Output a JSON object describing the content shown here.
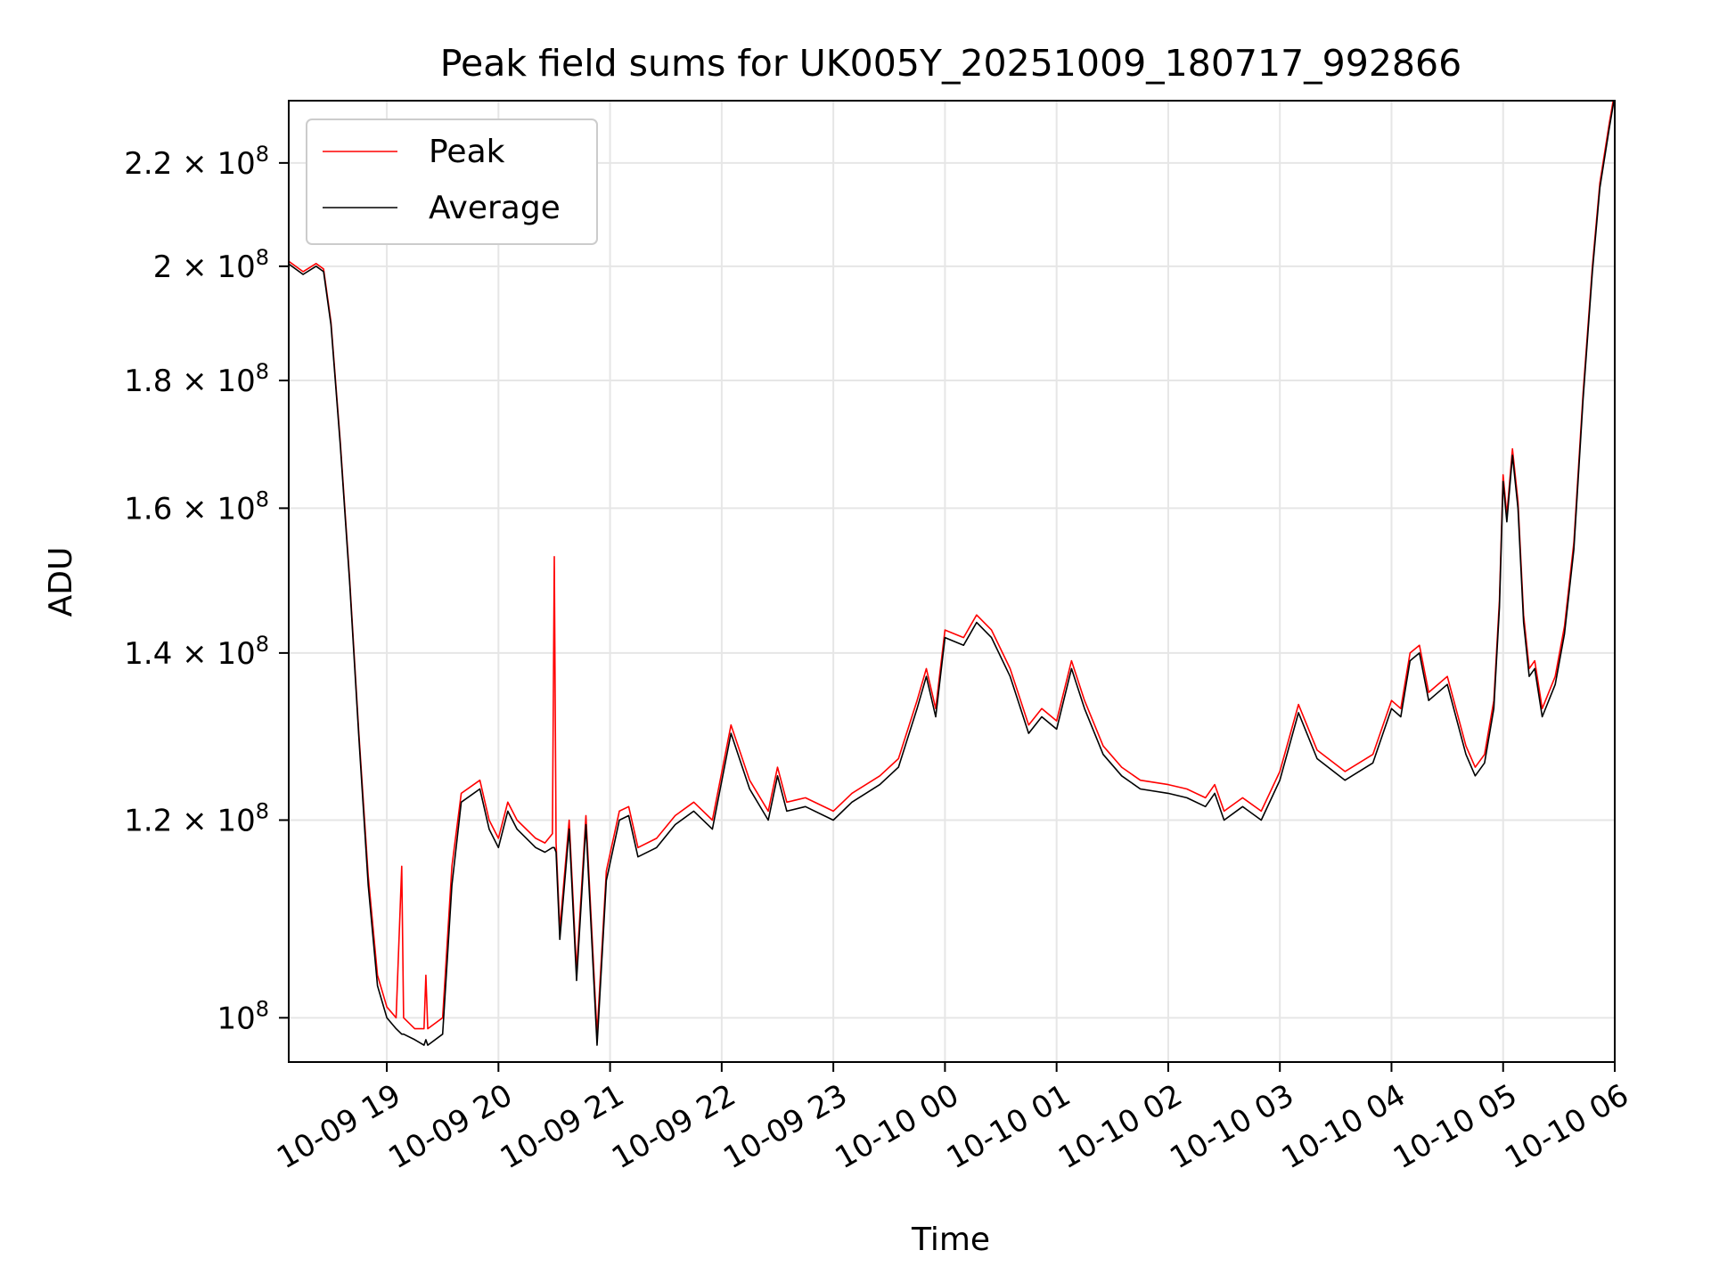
{
  "chart_data": {
    "type": "line",
    "title": "Peak field sums for UK005Y_20251009_180717_992866",
    "xlabel": "Time",
    "ylabel": "ADU",
    "y_scale": "log",
    "ylim": [
      96000000,
      233000000
    ],
    "xlim": [
      "2025-10-09 18:07:17",
      "2025-10-10 06:00:00"
    ],
    "grid": true,
    "legend_position": "upper-left",
    "x_ticks": [
      "10-09 19",
      "10-09 20",
      "10-09 21",
      "10-09 22",
      "10-09 23",
      "10-10 00",
      "10-10 01",
      "10-10 02",
      "10-10 03",
      "10-10 04",
      "10-10 05",
      "10-10 06"
    ],
    "y_ticks": [
      {
        "value": 100000000,
        "mantissa": "",
        "exponent": "8"
      },
      {
        "value": 120000000,
        "mantissa": "1.2",
        "exponent": "8"
      },
      {
        "value": 140000000,
        "mantissa": "1.4",
        "exponent": "8"
      },
      {
        "value": 160000000,
        "mantissa": "1.6",
        "exponent": "8"
      },
      {
        "value": 180000000,
        "mantissa": "1.8",
        "exponent": "8"
      },
      {
        "value": 200000000,
        "mantissa": "2",
        "exponent": "8"
      },
      {
        "value": 220000000,
        "mantissa": "2.2",
        "exponent": "8"
      }
    ],
    "series": [
      {
        "name": "Peak",
        "color": "#ff0000",
        "points": [
          [
            "2025-10-09 18:07",
            201000000
          ],
          [
            "2025-10-09 18:15",
            199000000
          ],
          [
            "2025-10-09 18:22",
            200500000
          ],
          [
            "2025-10-09 18:26",
            199500000
          ],
          [
            "2025-10-09 18:30",
            190000000
          ],
          [
            "2025-10-09 18:35",
            170000000
          ],
          [
            "2025-10-09 18:40",
            150000000
          ],
          [
            "2025-10-09 18:45",
            130000000
          ],
          [
            "2025-10-09 18:50",
            114000000
          ],
          [
            "2025-10-09 18:55",
            104000000
          ],
          [
            "2025-10-09 19:00",
            101000000
          ],
          [
            "2025-10-09 19:05",
            100000000
          ],
          [
            "2025-10-09 19:08",
            115000000
          ],
          [
            "2025-10-09 19:09",
            100000000
          ],
          [
            "2025-10-09 19:15",
            99000000
          ],
          [
            "2025-10-09 19:20",
            99000000
          ],
          [
            "2025-10-09 19:21",
            104000000
          ],
          [
            "2025-10-09 19:22",
            99000000
          ],
          [
            "2025-10-09 19:30",
            100000000
          ],
          [
            "2025-10-09 19:35",
            115000000
          ],
          [
            "2025-10-09 19:40",
            123000000
          ],
          [
            "2025-10-09 19:50",
            124500000
          ],
          [
            "2025-10-09 19:55",
            120000000
          ],
          [
            "2025-10-09 20:00",
            118000000
          ],
          [
            "2025-10-09 20:05",
            122000000
          ],
          [
            "2025-10-09 20:10",
            120000000
          ],
          [
            "2025-10-09 20:20",
            118000000
          ],
          [
            "2025-10-09 20:25",
            117500000
          ],
          [
            "2025-10-09 20:29",
            118500000
          ],
          [
            "2025-10-09 20:30",
            153000000
          ],
          [
            "2025-10-09 20:31",
            117500000
          ],
          [
            "2025-10-09 20:33",
            108500000
          ],
          [
            "2025-10-09 20:38",
            120000000
          ],
          [
            "2025-10-09 20:42",
            104500000
          ],
          [
            "2025-10-09 20:47",
            120500000
          ],
          [
            "2025-10-09 20:53",
            98500000
          ],
          [
            "2025-10-09 20:58",
            114500000
          ],
          [
            "2025-10-09 21:05",
            121000000
          ],
          [
            "2025-10-09 21:10",
            121500000
          ],
          [
            "2025-10-09 21:15",
            117000000
          ],
          [
            "2025-10-09 21:25",
            118000000
          ],
          [
            "2025-10-09 21:35",
            120500000
          ],
          [
            "2025-10-09 21:45",
            122000000
          ],
          [
            "2025-10-09 21:55",
            120000000
          ],
          [
            "2025-10-09 22:05",
            131000000
          ],
          [
            "2025-10-09 22:15",
            124500000
          ],
          [
            "2025-10-09 22:25",
            121000000
          ],
          [
            "2025-10-09 22:30",
            126000000
          ],
          [
            "2025-10-09 22:35",
            122000000
          ],
          [
            "2025-10-09 22:45",
            122500000
          ],
          [
            "2025-10-09 23:00",
            121000000
          ],
          [
            "2025-10-09 23:10",
            123000000
          ],
          [
            "2025-10-09 23:25",
            125000000
          ],
          [
            "2025-10-09 23:35",
            127000000
          ],
          [
            "2025-10-09 23:45",
            134000000
          ],
          [
            "2025-10-09 23:50",
            138000000
          ],
          [
            "2025-10-09 23:55",
            133000000
          ],
          [
            "2025-10-10 00:00",
            143000000
          ],
          [
            "2025-10-10 00:10",
            142000000
          ],
          [
            "2025-10-10 00:17",
            145000000
          ],
          [
            "2025-10-10 00:25",
            143000000
          ],
          [
            "2025-10-10 00:35",
            138000000
          ],
          [
            "2025-10-10 00:45",
            131000000
          ],
          [
            "2025-10-10 00:52",
            133000000
          ],
          [
            "2025-10-10 01:00",
            131500000
          ],
          [
            "2025-10-10 01:08",
            139000000
          ],
          [
            "2025-10-10 01:15",
            134000000
          ],
          [
            "2025-10-10 01:25",
            128500000
          ],
          [
            "2025-10-10 01:35",
            126000000
          ],
          [
            "2025-10-10 01:45",
            124500000
          ],
          [
            "2025-10-10 02:00",
            124000000
          ],
          [
            "2025-10-10 02:10",
            123500000
          ],
          [
            "2025-10-10 02:20",
            122500000
          ],
          [
            "2025-10-10 02:25",
            124000000
          ],
          [
            "2025-10-10 02:30",
            121000000
          ],
          [
            "2025-10-10 02:40",
            122500000
          ],
          [
            "2025-10-10 02:50",
            121000000
          ],
          [
            "2025-10-10 03:00",
            125500000
          ],
          [
            "2025-10-10 03:10",
            133500000
          ],
          [
            "2025-10-10 03:20",
            128000000
          ],
          [
            "2025-10-10 03:35",
            125500000
          ],
          [
            "2025-10-10 03:50",
            127500000
          ],
          [
            "2025-10-10 04:00",
            134000000
          ],
          [
            "2025-10-10 04:05",
            133000000
          ],
          [
            "2025-10-10 04:10",
            140000000
          ],
          [
            "2025-10-10 04:15",
            141000000
          ],
          [
            "2025-10-10 04:20",
            135000000
          ],
          [
            "2025-10-10 04:30",
            137000000
          ],
          [
            "2025-10-10 04:40",
            128500000
          ],
          [
            "2025-10-10 04:45",
            126000000
          ],
          [
            "2025-10-10 04:50",
            127500000
          ],
          [
            "2025-10-10 04:55",
            134000000
          ],
          [
            "2025-10-10 04:58",
            147000000
          ],
          [
            "2025-10-10 05:00",
            165000000
          ],
          [
            "2025-10-10 05:02",
            159000000
          ],
          [
            "2025-10-10 05:05",
            169000000
          ],
          [
            "2025-10-10 05:08",
            161000000
          ],
          [
            "2025-10-10 05:11",
            145000000
          ],
          [
            "2025-10-10 05:14",
            138000000
          ],
          [
            "2025-10-10 05:17",
            139000000
          ],
          [
            "2025-10-10 05:21",
            133000000
          ],
          [
            "2025-10-10 05:28",
            137000000
          ],
          [
            "2025-10-10 05:33",
            143500000
          ],
          [
            "2025-10-10 05:38",
            155000000
          ],
          [
            "2025-10-10 05:43",
            178000000
          ],
          [
            "2025-10-10 05:48",
            200000000
          ],
          [
            "2025-10-10 05:52",
            216000000
          ],
          [
            "2025-10-10 05:57",
            228000000
          ],
          [
            "2025-10-10 06:00",
            235000000
          ]
        ]
      },
      {
        "name": "Average",
        "color": "#000000",
        "points": [
          [
            "2025-10-09 18:07",
            200500000
          ],
          [
            "2025-10-09 18:15",
            198500000
          ],
          [
            "2025-10-09 18:22",
            200000000
          ],
          [
            "2025-10-09 18:26",
            199000000
          ],
          [
            "2025-10-09 18:30",
            189500000
          ],
          [
            "2025-10-09 18:35",
            169500000
          ],
          [
            "2025-10-09 18:40",
            149500000
          ],
          [
            "2025-10-09 18:45",
            129500000
          ],
          [
            "2025-10-09 18:50",
            113000000
          ],
          [
            "2025-10-09 18:55",
            103000000
          ],
          [
            "2025-10-09 19:00",
            100000000
          ],
          [
            "2025-10-09 19:05",
            99000000
          ],
          [
            "2025-10-09 19:08",
            98500000
          ],
          [
            "2025-10-09 19:09",
            98500000
          ],
          [
            "2025-10-09 19:15",
            98000000
          ],
          [
            "2025-10-09 19:20",
            97500000
          ],
          [
            "2025-10-09 19:21",
            98000000
          ],
          [
            "2025-10-09 19:22",
            97500000
          ],
          [
            "2025-10-09 19:30",
            98500000
          ],
          [
            "2025-10-09 19:35",
            113000000
          ],
          [
            "2025-10-09 19:40",
            122000000
          ],
          [
            "2025-10-09 19:50",
            123500000
          ],
          [
            "2025-10-09 19:55",
            119000000
          ],
          [
            "2025-10-09 20:00",
            117000000
          ],
          [
            "2025-10-09 20:05",
            121000000
          ],
          [
            "2025-10-09 20:10",
            119000000
          ],
          [
            "2025-10-09 20:20",
            117000000
          ],
          [
            "2025-10-09 20:25",
            116500000
          ],
          [
            "2025-10-09 20:29",
            117000000
          ],
          [
            "2025-10-09 20:30",
            117000000
          ],
          [
            "2025-10-09 20:31",
            116500000
          ],
          [
            "2025-10-09 20:33",
            107500000
          ],
          [
            "2025-10-09 20:38",
            119000000
          ],
          [
            "2025-10-09 20:42",
            103500000
          ],
          [
            "2025-10-09 20:47",
            119500000
          ],
          [
            "2025-10-09 20:53",
            97500000
          ],
          [
            "2025-10-09 20:58",
            113500000
          ],
          [
            "2025-10-09 21:05",
            120000000
          ],
          [
            "2025-10-09 21:10",
            120500000
          ],
          [
            "2025-10-09 21:15",
            116000000
          ],
          [
            "2025-10-09 21:25",
            117000000
          ],
          [
            "2025-10-09 21:35",
            119500000
          ],
          [
            "2025-10-09 21:45",
            121000000
          ],
          [
            "2025-10-09 21:55",
            119000000
          ],
          [
            "2025-10-09 22:05",
            130000000
          ],
          [
            "2025-10-09 22:15",
            123500000
          ],
          [
            "2025-10-09 22:25",
            120000000
          ],
          [
            "2025-10-09 22:30",
            125000000
          ],
          [
            "2025-10-09 22:35",
            121000000
          ],
          [
            "2025-10-09 22:45",
            121500000
          ],
          [
            "2025-10-09 23:00",
            120000000
          ],
          [
            "2025-10-09 23:10",
            122000000
          ],
          [
            "2025-10-09 23:25",
            124000000
          ],
          [
            "2025-10-09 23:35",
            126000000
          ],
          [
            "2025-10-09 23:45",
            133000000
          ],
          [
            "2025-10-09 23:50",
            137000000
          ],
          [
            "2025-10-09 23:55",
            132000000
          ],
          [
            "2025-10-10 00:00",
            142000000
          ],
          [
            "2025-10-10 00:10",
            141000000
          ],
          [
            "2025-10-10 00:17",
            144000000
          ],
          [
            "2025-10-10 00:25",
            142000000
          ],
          [
            "2025-10-10 00:35",
            137000000
          ],
          [
            "2025-10-10 00:45",
            130000000
          ],
          [
            "2025-10-10 00:52",
            132000000
          ],
          [
            "2025-10-10 01:00",
            130500000
          ],
          [
            "2025-10-10 01:08",
            138000000
          ],
          [
            "2025-10-10 01:15",
            133000000
          ],
          [
            "2025-10-10 01:25",
            127500000
          ],
          [
            "2025-10-10 01:35",
            125000000
          ],
          [
            "2025-10-10 01:45",
            123500000
          ],
          [
            "2025-10-10 02:00",
            123000000
          ],
          [
            "2025-10-10 02:10",
            122500000
          ],
          [
            "2025-10-10 02:20",
            121500000
          ],
          [
            "2025-10-10 02:25",
            123000000
          ],
          [
            "2025-10-10 02:30",
            120000000
          ],
          [
            "2025-10-10 02:40",
            121500000
          ],
          [
            "2025-10-10 02:50",
            120000000
          ],
          [
            "2025-10-10 03:00",
            124500000
          ],
          [
            "2025-10-10 03:10",
            132500000
          ],
          [
            "2025-10-10 03:20",
            127000000
          ],
          [
            "2025-10-10 03:35",
            124500000
          ],
          [
            "2025-10-10 03:50",
            126500000
          ],
          [
            "2025-10-10 04:00",
            133000000
          ],
          [
            "2025-10-10 04:05",
            132000000
          ],
          [
            "2025-10-10 04:10",
            139000000
          ],
          [
            "2025-10-10 04:15",
            140000000
          ],
          [
            "2025-10-10 04:20",
            134000000
          ],
          [
            "2025-10-10 04:30",
            136000000
          ],
          [
            "2025-10-10 04:40",
            127500000
          ],
          [
            "2025-10-10 04:45",
            125000000
          ],
          [
            "2025-10-10 04:50",
            126500000
          ],
          [
            "2025-10-10 04:55",
            133000000
          ],
          [
            "2025-10-10 04:58",
            146000000
          ],
          [
            "2025-10-10 05:00",
            164000000
          ],
          [
            "2025-10-10 05:02",
            158000000
          ],
          [
            "2025-10-10 05:05",
            168000000
          ],
          [
            "2025-10-10 05:08",
            160000000
          ],
          [
            "2025-10-10 05:11",
            144000000
          ],
          [
            "2025-10-10 05:14",
            137000000
          ],
          [
            "2025-10-10 05:17",
            138000000
          ],
          [
            "2025-10-10 05:21",
            132000000
          ],
          [
            "2025-10-10 05:28",
            136000000
          ],
          [
            "2025-10-10 05:33",
            142500000
          ],
          [
            "2025-10-10 05:38",
            154000000
          ],
          [
            "2025-10-10 05:43",
            177000000
          ],
          [
            "2025-10-10 05:48",
            199000000
          ],
          [
            "2025-10-10 05:52",
            215000000
          ],
          [
            "2025-10-10 05:57",
            227000000
          ],
          [
            "2025-10-10 06:00",
            234000000
          ]
        ]
      }
    ]
  }
}
